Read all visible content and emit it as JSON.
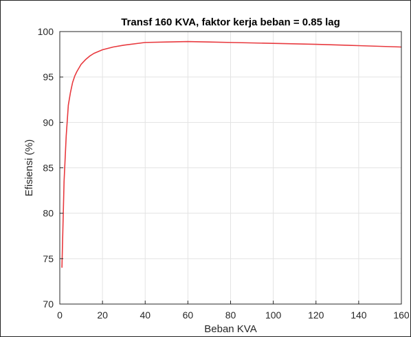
{
  "chart_data": {
    "type": "line",
    "title": "Transf 160 KVA, faktor kerja beban = 0.85 lag",
    "xlabel": "Beban KVA",
    "ylabel": "Efisiensi (%)",
    "xlim": [
      0,
      160
    ],
    "ylim": [
      70,
      100
    ],
    "xticks": [
      0,
      20,
      40,
      60,
      80,
      100,
      120,
      140,
      160
    ],
    "yticks": [
      70,
      75,
      80,
      85,
      90,
      95,
      100
    ],
    "grid": true,
    "series": [
      {
        "color": "#e8383d",
        "x": [
          1,
          2,
          3,
          4,
          5,
          6,
          7,
          8,
          10,
          12,
          14,
          16,
          20,
          25,
          30,
          40,
          50,
          60,
          70,
          80,
          100,
          120,
          140,
          160
        ],
        "y": [
          74.0,
          83.5,
          88.5,
          91.9,
          93.3,
          94.4,
          95.1,
          95.6,
          96.4,
          96.9,
          97.3,
          97.6,
          98.0,
          98.3,
          98.5,
          98.8,
          98.85,
          98.9,
          98.85,
          98.8,
          98.7,
          98.6,
          98.45,
          98.3
        ]
      }
    ]
  }
}
